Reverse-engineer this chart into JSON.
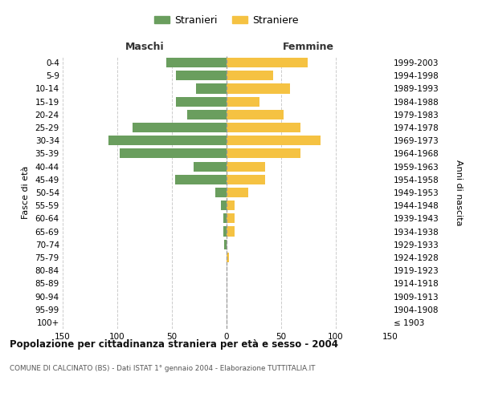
{
  "age_groups": [
    "100+",
    "95-99",
    "90-94",
    "85-89",
    "80-84",
    "75-79",
    "70-74",
    "65-69",
    "60-64",
    "55-59",
    "50-54",
    "45-49",
    "40-44",
    "35-39",
    "30-34",
    "25-29",
    "20-24",
    "15-19",
    "10-14",
    "5-9",
    "0-4"
  ],
  "birth_years": [
    "≤ 1903",
    "1904-1908",
    "1909-1913",
    "1914-1918",
    "1919-1923",
    "1924-1928",
    "1929-1933",
    "1934-1938",
    "1939-1943",
    "1944-1948",
    "1949-1953",
    "1954-1958",
    "1959-1963",
    "1964-1968",
    "1969-1973",
    "1974-1978",
    "1979-1983",
    "1984-1988",
    "1989-1993",
    "1994-1998",
    "1999-2003"
  ],
  "maschi": [
    0,
    0,
    0,
    0,
    0,
    0,
    2,
    3,
    3,
    5,
    10,
    47,
    30,
    98,
    108,
    86,
    36,
    46,
    28,
    46,
    55
  ],
  "femmine": [
    0,
    0,
    0,
    0,
    0,
    2,
    0,
    7,
    7,
    7,
    20,
    35,
    35,
    68,
    86,
    68,
    52,
    30,
    58,
    43,
    74
  ],
  "color_maschi": "#6a9e5e",
  "color_femmine": "#f5c242",
  "title": "Popolazione per cittadinanza straniera per età e sesso - 2004",
  "subtitle": "COMUNE DI CALCINATO (BS) - Dati ISTAT 1° gennaio 2004 - Elaborazione TUTTITALIA.IT",
  "ylabel_left": "Fasce di età",
  "ylabel_right": "Anni di nascita",
  "xlabel_left": "Maschi",
  "xlabel_top_right": "Femmine",
  "legend_maschi": "Stranieri",
  "legend_femmine": "Straniere",
  "xlim": 150,
  "background_color": "#ffffff",
  "grid_color": "#cccccc"
}
